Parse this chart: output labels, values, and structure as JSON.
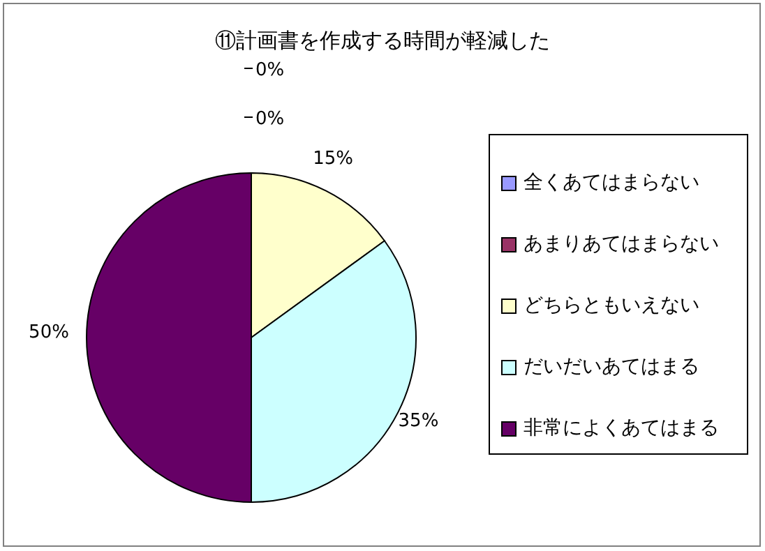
{
  "chart_data": {
    "type": "pie",
    "title": "⑪計画書を作成する時間が軽減した",
    "categories": [
      "全くあてはまらない",
      "あまりあてはまらない",
      "どちらともいえない",
      "だいだいあてはまる",
      "非常によくあてはまる"
    ],
    "values": [
      0,
      0,
      15,
      35,
      50
    ],
    "colors": [
      "#9999ff",
      "#993366",
      "#ffffcc",
      "#ccffff",
      "#660066"
    ],
    "value_labels": [
      "0%",
      "0%",
      "15%",
      "35%",
      "50%"
    ],
    "data_labels": true,
    "legend": "right"
  }
}
